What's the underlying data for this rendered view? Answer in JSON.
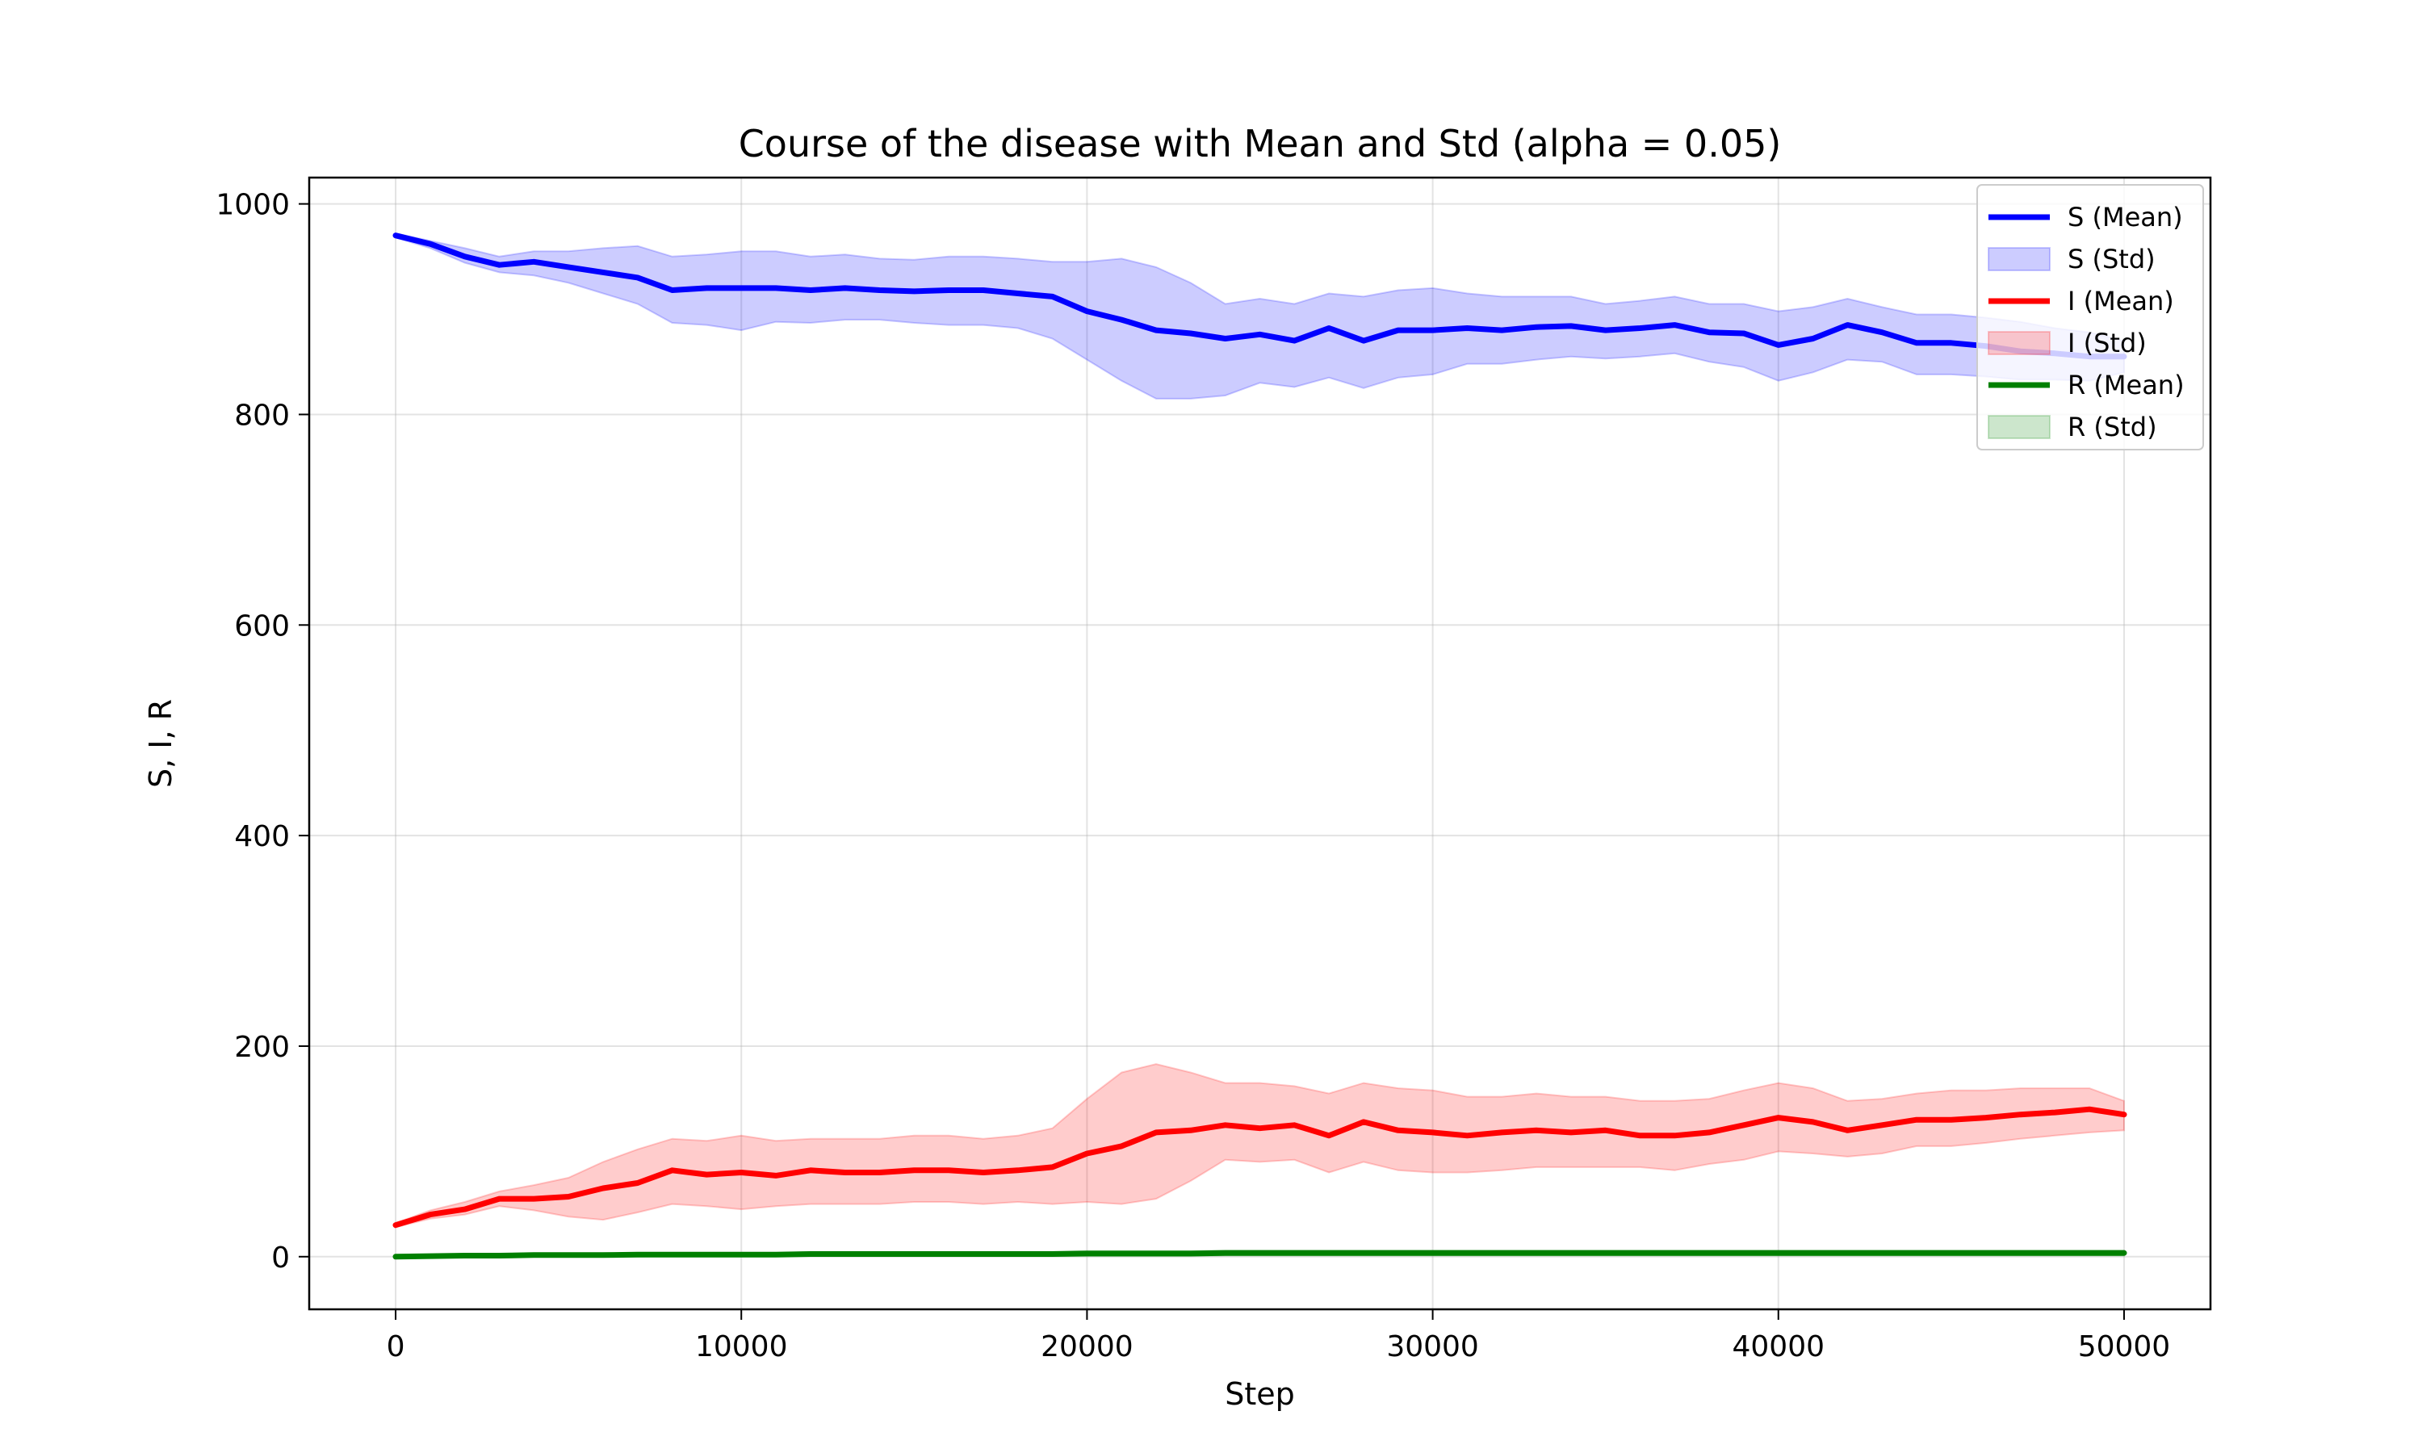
{
  "chart_data": {
    "type": "line",
    "title": "Course of the disease with Mean and Std (alpha = 0.05)",
    "xlabel": "Step",
    "ylabel": "S, I, R",
    "xlim": [
      -2500,
      52500
    ],
    "ylim": [
      -50,
      1025
    ],
    "xticks": [
      0,
      10000,
      20000,
      30000,
      40000,
      50000
    ],
    "yticks": [
      0,
      200,
      400,
      600,
      800,
      1000
    ],
    "xtick_labels": [
      "0",
      "10000",
      "20000",
      "30000",
      "40000",
      "50000"
    ],
    "ytick_labels": [
      "0",
      "200",
      "400",
      "600",
      "800",
      "1000"
    ],
    "grid": true,
    "legend_position": "top-right",
    "x": [
      0,
      1000,
      2000,
      3000,
      4000,
      5000,
      6000,
      7000,
      8000,
      9000,
      10000,
      11000,
      12000,
      13000,
      14000,
      15000,
      16000,
      17000,
      18000,
      19000,
      20000,
      21000,
      22000,
      23000,
      24000,
      25000,
      26000,
      27000,
      28000,
      29000,
      30000,
      31000,
      32000,
      33000,
      34000,
      35000,
      36000,
      37000,
      38000,
      39000,
      40000,
      41000,
      42000,
      43000,
      44000,
      45000,
      46000,
      47000,
      48000,
      49000,
      50000
    ],
    "series": [
      {
        "name": "S (Mean)",
        "std_label": "S (Std)",
        "color": "#0000ff",
        "band_color": "#0000ff",
        "mean": [
          970,
          962,
          950,
          942,
          945,
          940,
          935,
          930,
          918,
          920,
          920,
          920,
          918,
          920,
          918,
          917,
          918,
          918,
          915,
          912,
          898,
          890,
          880,
          877,
          872,
          876,
          870,
          882,
          870,
          880,
          880,
          882,
          880,
          883,
          884,
          880,
          882,
          885,
          878,
          877,
          866,
          872,
          885,
          878,
          868,
          868,
          865,
          860,
          858,
          855,
          855
        ],
        "lower": [
          968,
          958,
          944,
          935,
          932,
          925,
          915,
          905,
          887,
          885,
          880,
          888,
          887,
          890,
          890,
          887,
          885,
          885,
          882,
          872,
          852,
          832,
          815,
          815,
          818,
          830,
          826,
          835,
          825,
          835,
          838,
          848,
          848,
          852,
          855,
          853,
          855,
          858,
          850,
          845,
          832,
          840,
          852,
          850,
          838,
          838,
          836,
          833,
          833,
          832,
          840
        ],
        "upper": [
          972,
          965,
          958,
          950,
          955,
          955,
          958,
          960,
          950,
          952,
          955,
          955,
          950,
          952,
          948,
          947,
          950,
          950,
          948,
          945,
          945,
          948,
          940,
          925,
          905,
          910,
          905,
          915,
          912,
          918,
          920,
          915,
          912,
          912,
          912,
          905,
          908,
          912,
          905,
          905,
          898,
          902,
          910,
          902,
          895,
          895,
          892,
          888,
          882,
          878,
          870
        ]
      },
      {
        "name": "I (Mean)",
        "std_label": "I (Std)",
        "color": "#ff0000",
        "band_color": "#ff0000",
        "mean": [
          30,
          40,
          45,
          55,
          55,
          57,
          65,
          70,
          82,
          78,
          80,
          77,
          82,
          80,
          80,
          82,
          82,
          80,
          82,
          85,
          98,
          105,
          118,
          120,
          125,
          122,
          125,
          115,
          128,
          120,
          118,
          115,
          118,
          120,
          118,
          120,
          115,
          115,
          118,
          125,
          132,
          128,
          120,
          125,
          130,
          130,
          132,
          135,
          137,
          140,
          135
        ],
        "lower": [
          28,
          36,
          40,
          48,
          44,
          38,
          35,
          42,
          50,
          48,
          45,
          48,
          50,
          50,
          50,
          52,
          52,
          50,
          52,
          50,
          52,
          50,
          55,
          72,
          92,
          90,
          92,
          80,
          90,
          82,
          80,
          80,
          82,
          85,
          85,
          85,
          85,
          82,
          88,
          92,
          100,
          98,
          95,
          98,
          105,
          105,
          108,
          112,
          115,
          118,
          120
        ],
        "upper": [
          32,
          44,
          52,
          62,
          68,
          75,
          90,
          102,
          112,
          110,
          115,
          110,
          112,
          112,
          112,
          115,
          115,
          112,
          115,
          122,
          150,
          175,
          183,
          175,
          165,
          165,
          162,
          155,
          165,
          160,
          158,
          152,
          152,
          155,
          152,
          152,
          148,
          148,
          150,
          158,
          165,
          160,
          148,
          150,
          155,
          158,
          158,
          160,
          160,
          160,
          148
        ]
      },
      {
        "name": "R (Mean)",
        "std_label": "R (Std)",
        "color": "#008000",
        "band_color": "#008000",
        "mean": [
          0,
          0.5,
          1,
          1,
          1.5,
          1.5,
          1.5,
          2,
          2,
          2,
          2,
          2,
          2.5,
          2.5,
          2.5,
          2.5,
          2.5,
          2.5,
          2.5,
          2.5,
          3,
          3,
          3,
          3,
          3.5,
          3.5,
          3.5,
          3.5,
          3.5,
          3.5,
          3.5,
          3.5,
          3.5,
          3.5,
          3.5,
          3.5,
          3.5,
          3.5,
          3.5,
          3.5,
          3.5,
          3.5,
          3.5,
          3.5,
          3.5,
          3.5,
          3.5,
          3.5,
          3.5,
          3.5,
          3.5
        ],
        "lower": [
          0,
          0,
          0,
          0,
          0,
          0,
          0,
          0,
          0.5,
          0.5,
          0.5,
          0.5,
          0.5,
          0.5,
          0.5,
          0.5,
          0.5,
          0.5,
          0.5,
          0.5,
          0.5,
          0.5,
          0.5,
          0.5,
          1,
          1,
          1,
          1,
          1,
          1,
          1,
          1,
          1,
          1,
          1,
          1,
          1,
          1,
          1,
          1,
          1,
          1,
          1,
          1,
          1,
          1,
          1,
          1,
          1,
          1,
          1
        ],
        "upper": [
          0,
          1,
          2,
          2,
          3,
          3,
          3,
          3.5,
          3.5,
          3.5,
          3.5,
          3.5,
          4.5,
          4.5,
          4.5,
          4.5,
          4.5,
          4.5,
          4.5,
          4.5,
          5.5,
          5.5,
          5.5,
          5.5,
          6,
          6,
          6,
          6,
          6,
          6,
          6,
          6,
          6,
          6,
          6,
          6,
          6,
          6,
          6,
          6,
          6,
          6,
          6,
          6,
          6,
          6,
          6,
          6,
          6,
          6,
          6
        ]
      }
    ]
  }
}
